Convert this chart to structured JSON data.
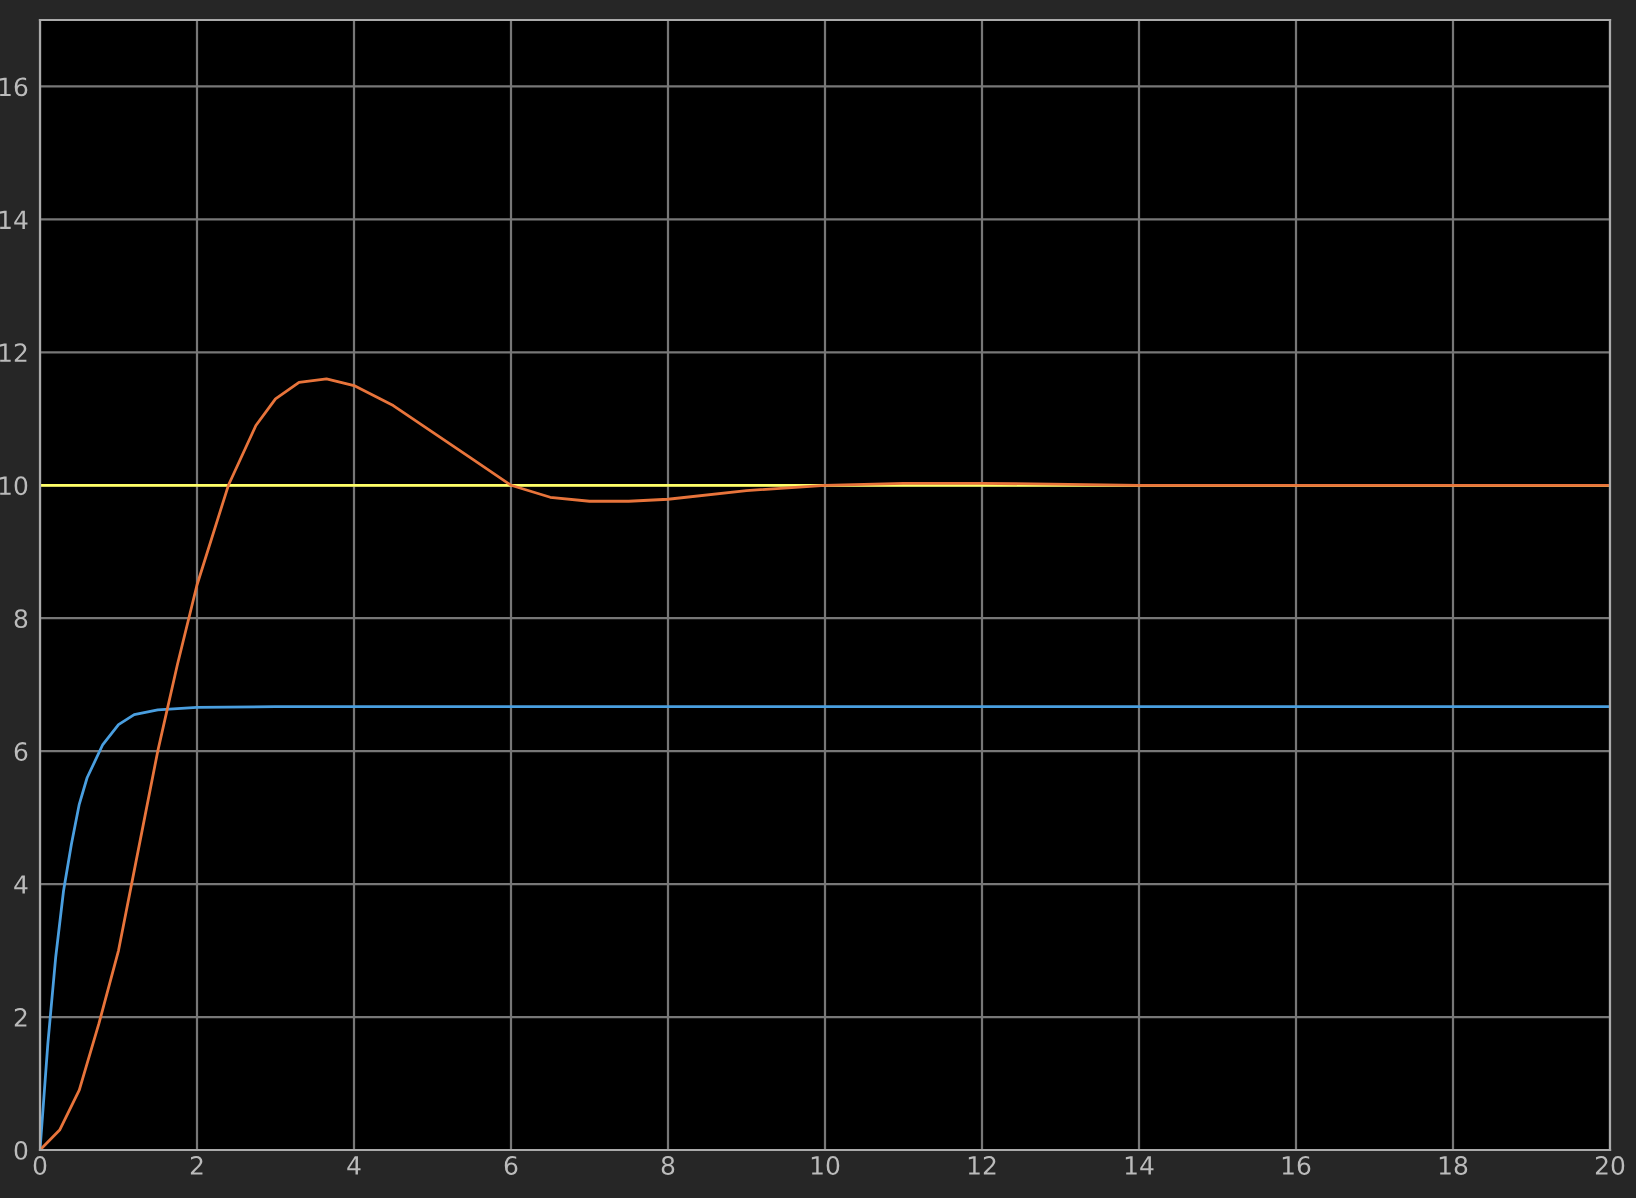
{
  "chart_data": {
    "type": "line",
    "xlim": [
      0,
      20
    ],
    "ylim": [
      0,
      17
    ],
    "xticks": [
      0,
      2,
      4,
      6,
      8,
      10,
      12,
      14,
      16,
      18,
      20
    ],
    "yticks": [
      0,
      2,
      4,
      6,
      8,
      10,
      12,
      14,
      16
    ],
    "grid": true,
    "legend": false,
    "line_style": "solid",
    "marker": "none",
    "series": [
      {
        "color": "#ffff66",
        "x": [
          0,
          20
        ],
        "values": [
          10,
          10
        ]
      },
      {
        "color": "#4a9fe0",
        "x": [
          0,
          0.1,
          0.2,
          0.3,
          0.4,
          0.5,
          0.6,
          0.8,
          1.0,
          1.2,
          1.5,
          2,
          3,
          20
        ],
        "values": [
          0,
          1.6,
          2.9,
          3.9,
          4.6,
          5.2,
          5.6,
          6.1,
          6.4,
          6.55,
          6.62,
          6.66,
          6.67,
          6.67
        ]
      },
      {
        "color": "#e8743b",
        "x": [
          0,
          0.25,
          0.5,
          0.75,
          1,
          1.25,
          1.5,
          1.75,
          2,
          2.4,
          2.75,
          3,
          3.3,
          3.65,
          4,
          4.5,
          5,
          5.5,
          6,
          6.5,
          7,
          7.5,
          8,
          9,
          10,
          11,
          12,
          14,
          16,
          20
        ],
        "values": [
          0,
          0.3,
          0.9,
          1.9,
          3.0,
          4.5,
          6.0,
          7.3,
          8.5,
          10.0,
          10.9,
          11.3,
          11.55,
          11.6,
          11.5,
          11.2,
          10.8,
          10.4,
          10.0,
          9.82,
          9.76,
          9.76,
          9.79,
          9.92,
          10.0,
          10.03,
          10.03,
          10.0,
          10.0,
          10.0
        ]
      }
    ]
  }
}
